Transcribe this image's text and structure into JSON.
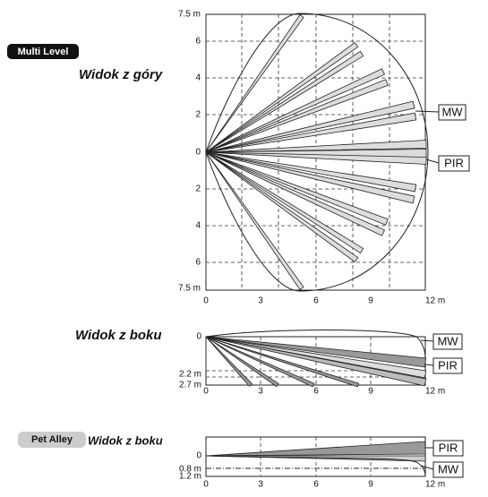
{
  "badges": {
    "multi_level": "Multi Level",
    "pet_alley": "Pet Alley"
  },
  "top_view": {
    "title": "Widok z góry",
    "y_labels": [
      "7.5 m",
      "6",
      "4",
      "2",
      "0",
      "2",
      "4",
      "6",
      "7.5 m"
    ],
    "x_labels": [
      "0",
      "3",
      "6",
      "9",
      "12 m"
    ],
    "mw": "MW",
    "pir": "PIR"
  },
  "side_view": {
    "title": "Widok z boku",
    "y_labels": [
      "0",
      "2.2 m",
      "2.7 m"
    ],
    "x_labels": [
      "0",
      "3",
      "6",
      "9",
      "12 m"
    ],
    "mw": "MW",
    "pir": "PIR"
  },
  "pet_view": {
    "title": "Widok z boku",
    "y_labels": [
      "0",
      "0.8 m",
      "1.2 m"
    ],
    "x_labels": [
      "0",
      "3",
      "6",
      "9",
      "12 m"
    ],
    "pir": "PIR",
    "mw": "MW"
  }
}
